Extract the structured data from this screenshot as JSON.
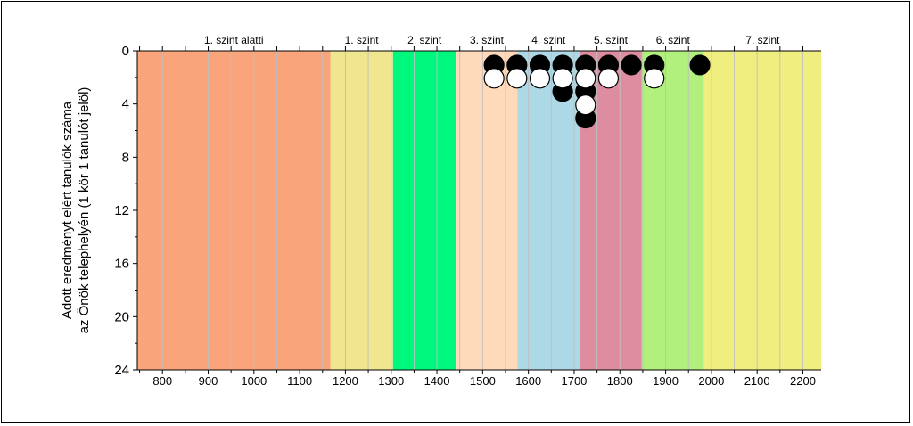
{
  "chart_data": {
    "type": "scatter",
    "title": "",
    "ylabel_lines": [
      "Adott eredményt elért tanulók száma",
      "az Önök telephelyén (1 kör 1 tanulót jelöl)"
    ],
    "xlabel": "",
    "xlim": [
      745,
      2240
    ],
    "ylim": [
      0,
      24
    ],
    "y_inverted": true,
    "xticks": [
      800,
      900,
      1000,
      1100,
      1200,
      1300,
      1400,
      1500,
      1600,
      1700,
      1800,
      1900,
      2000,
      2100,
      2200
    ],
    "yticks": [
      0,
      4,
      8,
      12,
      16,
      20,
      24
    ],
    "grid_x_step": 50,
    "levels": [
      {
        "label": "1. szint alatti",
        "from": 745,
        "to": 1167,
        "color": "#F9A47A"
      },
      {
        "label": "1. szint",
        "from": 1167,
        "to": 1304,
        "color": "#F0E68F"
      },
      {
        "label": "2. szint",
        "from": 1304,
        "to": 1442,
        "color": "#00F77E"
      },
      {
        "label": "3. szint",
        "from": 1442,
        "to": 1576,
        "color": "#FFDABA"
      },
      {
        "label": "4. szint",
        "from": 1576,
        "to": 1712,
        "color": "#ADD8E6"
      },
      {
        "label": "5. szint",
        "from": 1712,
        "to": 1848,
        "color": "#DE8DA0"
      },
      {
        "label": "6. szint",
        "from": 1848,
        "to": 1984,
        "color": "#B2F07E"
      },
      {
        "label": "7. szint",
        "from": 1984,
        "to": 2240,
        "color": "#F0EE7E"
      }
    ],
    "series": [
      {
        "fill": "#000000",
        "points": [
          {
            "x": 1525,
            "y": 1
          },
          {
            "x": 1575,
            "y": 1
          },
          {
            "x": 1625,
            "y": 1
          },
          {
            "x": 1675,
            "y": 1
          },
          {
            "x": 1675,
            "y": 3
          },
          {
            "x": 1725,
            "y": 1
          },
          {
            "x": 1725,
            "y": 3
          },
          {
            "x": 1725,
            "y": 5
          },
          {
            "x": 1775,
            "y": 1
          },
          {
            "x": 1825,
            "y": 1
          },
          {
            "x": 1875,
            "y": 1
          },
          {
            "x": 1975,
            "y": 1
          }
        ]
      },
      {
        "fill": "#FFFFFF",
        "points": [
          {
            "x": 1525,
            "y": 2
          },
          {
            "x": 1575,
            "y": 2
          },
          {
            "x": 1625,
            "y": 2
          },
          {
            "x": 1675,
            "y": 2
          },
          {
            "x": 1725,
            "y": 2
          },
          {
            "x": 1725,
            "y": 4
          },
          {
            "x": 1775,
            "y": 2
          },
          {
            "x": 1875,
            "y": 2
          }
        ]
      }
    ]
  }
}
